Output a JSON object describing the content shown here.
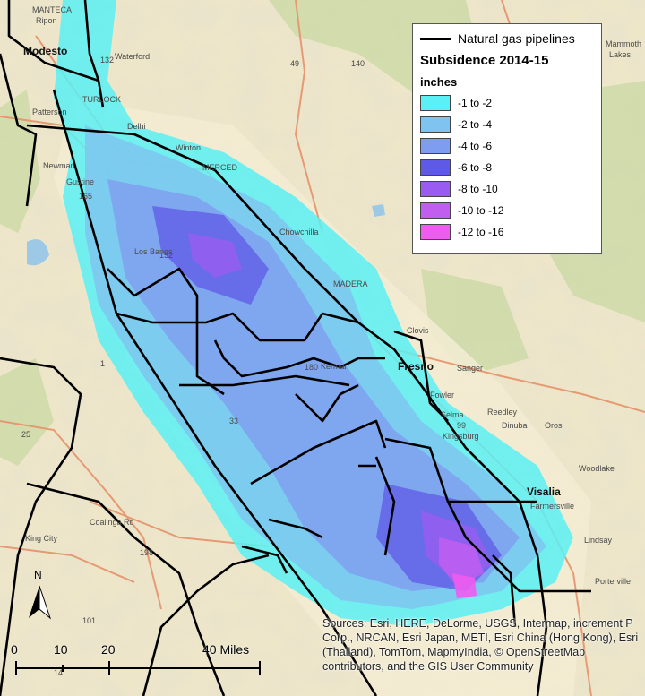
{
  "legend": {
    "pipeline_label": "Natural gas pipelines",
    "title": "Subsidence 2014-15",
    "unit": "inches",
    "classes": [
      {
        "label": "-1 to -2",
        "color": "#5af0f5"
      },
      {
        "label": "-2 to -4",
        "color": "#7fc3f0"
      },
      {
        "label": "-4 to -6",
        "color": "#7f9df0"
      },
      {
        "label": "-6 to -8",
        "color": "#5f5ae6"
      },
      {
        "label": "-8 to -10",
        "color": "#9a5cf0"
      },
      {
        "label": "-10 to -12",
        "color": "#c05ef0"
      },
      {
        "label": "-12 to -16",
        "color": "#ee5cf0"
      }
    ]
  },
  "places": {
    "modesto": "Modesto",
    "fresno": "Fresno",
    "visalia": "Visalia",
    "manteca": "MANTECA",
    "ripon": "Ripon",
    "waterford": "Waterford",
    "turlock": "TURLOCK",
    "patterson": "Patterson",
    "delhi": "Delhi",
    "winton": "Winton",
    "newman": "Newman",
    "gustine": "Gustine",
    "merced": "MERCED",
    "chowchilla": "Chowchilla",
    "madera": "MADERA",
    "los_banos": "Los Banos",
    "clovis": "Clovis",
    "kerman": "Kerman",
    "sanger": "Sanger",
    "fowler": "Fowler",
    "selma": "Selma",
    "reedley": "Reedley",
    "kingsburg": "Kingsburg",
    "dinuba": "Dinuba",
    "orosi": "Orosi",
    "woodlake": "Woodlake",
    "farmersville": "Farmersville",
    "lindsay": "Lindsay",
    "porterville": "Porterville",
    "coalinga_rd": "Coalinga Rd",
    "king_city": "King City",
    "lakes": "Lakes",
    "mammoth": "Mammoth"
  },
  "routes": [
    "132",
    "49",
    "140",
    "165",
    "152",
    "1",
    "25",
    "33",
    "180",
    "198",
    "101",
    "99",
    "14"
  ],
  "scale": {
    "ticks": [
      "0",
      "10",
      "20",
      "40 Miles"
    ]
  },
  "north_label": "N",
  "attribution": "Sources: Esri, HERE, DeLorme, USGS, Intermap, increment P Corp., NRCAN, Esri Japan, METI, Esri China (Hong Kong), Esri (Thailand), TomTom, MapmyIndia, © OpenStreetMap contributors, and the GIS User Community"
}
